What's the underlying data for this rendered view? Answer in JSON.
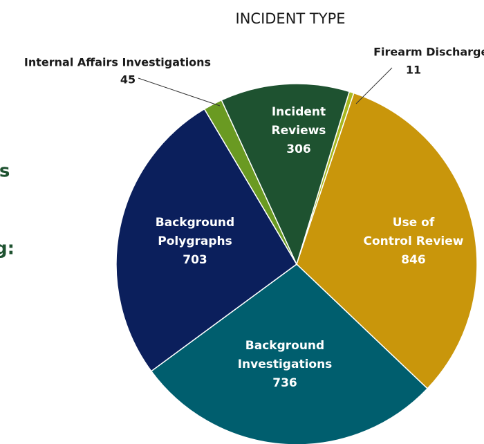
{
  "fragments": [
    "rs",
    "g:"
  ],
  "chart_data": {
    "type": "pie",
    "title": "INCIDENT TYPE",
    "categories": [
      "Firearm Discharges",
      "Use of Control Review",
      "Background Investigations",
      "Background Polygraphs",
      "Internal Affairs Investigations",
      "Incident Reviews"
    ],
    "values": [
      11,
      846,
      736,
      703,
      45,
      306
    ],
    "colors": [
      "#a9b81f",
      "#c9960b",
      "#005e6e",
      "#0b1f5c",
      "#6a9a22",
      "#1e5230"
    ]
  }
}
